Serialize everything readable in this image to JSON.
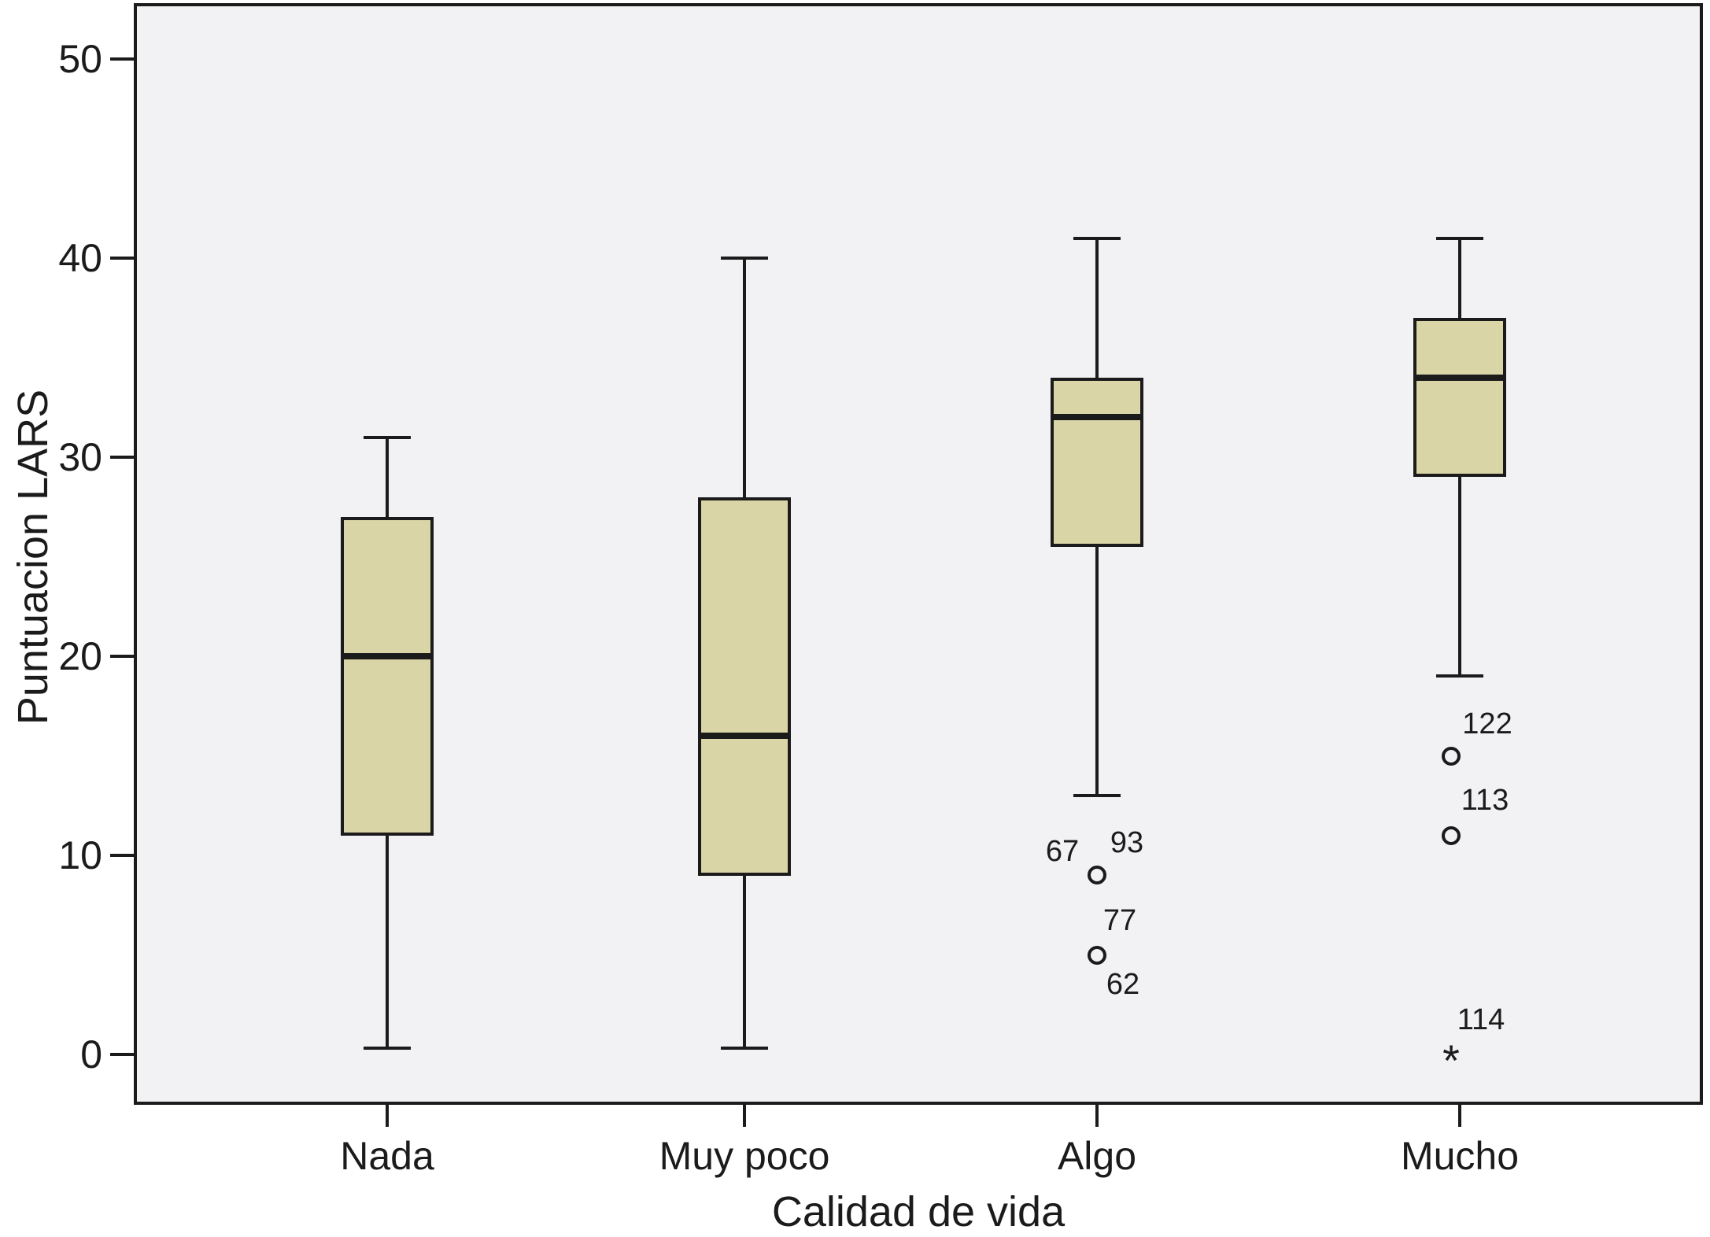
{
  "chart_data": {
    "type": "boxplot",
    "title": "",
    "xlabel": "Calidad de vida",
    "ylabel": "Puntuacion LARS",
    "ylim": [
      -2.5,
      52.7
    ],
    "yticks": [
      0,
      10,
      20,
      30,
      40,
      50
    ],
    "grid": false,
    "legend": "none",
    "colors": {
      "box_fill": "#d9d5a7",
      "line": "#1b1b1b",
      "plot_bg": "#f2f2f4",
      "page_bg": "#ffffff"
    },
    "extreme_marker": "*",
    "categories": [
      "Nada",
      "Muy poco",
      "Algo",
      "Mucho"
    ],
    "series": [
      {
        "category": "Nada",
        "whisker_low": 0.3,
        "q1": 11,
        "median": 20,
        "q3": 27,
        "whisker_high": 31,
        "outliers": [],
        "extremes": []
      },
      {
        "category": "Muy poco",
        "whisker_low": 0.3,
        "q1": 9,
        "median": 16,
        "q3": 28,
        "whisker_high": 40,
        "outliers": [],
        "extremes": []
      },
      {
        "category": "Algo",
        "whisker_low": 13,
        "q1": 25.5,
        "median": 32,
        "q3": 34,
        "whisker_high": 41,
        "outliers": [
          {
            "value": 9,
            "marker_dx": 0,
            "labels": [
              {
                "text": "67",
                "dx": -44,
                "dy": -30
              },
              {
                "text": "93",
                "dx": 38,
                "dy": -41
              }
            ]
          },
          {
            "value": 5,
            "marker_dx": 0,
            "labels": [
              {
                "text": "77",
                "dx": 29,
                "dy": -44
              },
              {
                "text": "62",
                "dx": 33,
                "dy": 37
              }
            ]
          }
        ],
        "extremes": []
      },
      {
        "category": "Mucho",
        "whisker_low": 19,
        "q1": 29,
        "median": 34,
        "q3": 37,
        "whisker_high": 41,
        "outliers": [
          {
            "value": 15,
            "marker_dx": -11,
            "labels": [
              {
                "text": "122",
                "dx": 46,
                "dy": -41
              }
            ]
          },
          {
            "value": 11,
            "marker_dx": -11,
            "labels": [
              {
                "text": "113",
                "dx": 43,
                "dy": -45
              }
            ]
          }
        ],
        "extremes": [
          {
            "value": 0,
            "marker_dx": -11,
            "labels": [
              {
                "text": "114",
                "dx": 38,
                "dy": -44
              }
            ]
          }
        ]
      }
    ]
  }
}
